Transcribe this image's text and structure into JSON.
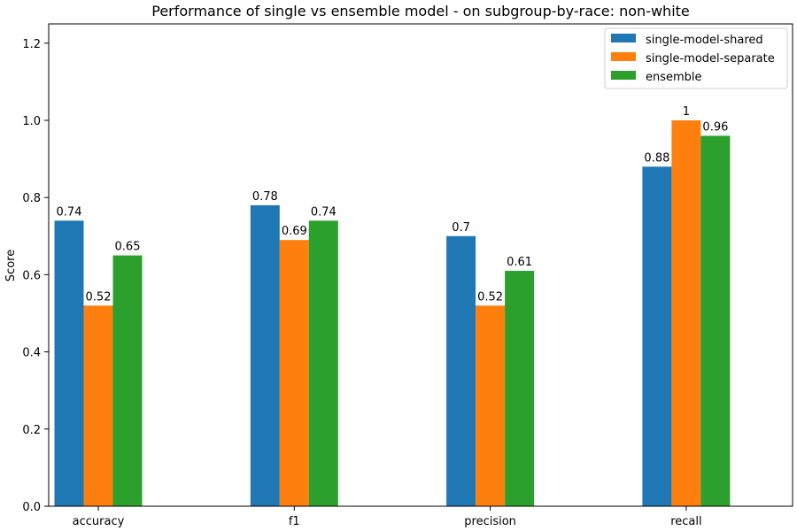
{
  "chart_data": {
    "type": "bar",
    "title": "Performance of single vs ensemble model - on subgroup-by-race: non-white",
    "xlabel": "",
    "ylabel": "Score",
    "categories": [
      "accuracy",
      "f1",
      "precision",
      "recall"
    ],
    "series": [
      {
        "name": "single-model-shared",
        "color": "#1f77b4",
        "values": [
          0.74,
          0.78,
          0.7,
          0.88
        ],
        "labels": [
          "0.74",
          "0.78",
          "0.7",
          "0.88"
        ]
      },
      {
        "name": "single-model-separate",
        "color": "#ff7f0e",
        "values": [
          0.52,
          0.69,
          0.52,
          1.0
        ],
        "labels": [
          "0.52",
          "0.69",
          "0.52",
          "1"
        ]
      },
      {
        "name": "ensemble",
        "color": "#2ca02c",
        "values": [
          0.65,
          0.74,
          0.61,
          0.96
        ],
        "labels": [
          "0.65",
          "0.74",
          "0.61",
          "0.96"
        ]
      }
    ],
    "ylim": [
      0,
      1.25
    ],
    "yticks": [
      "0.0",
      "0.2",
      "0.4",
      "0.6",
      "0.8",
      "1.0",
      "1.2"
    ],
    "grid": false,
    "legend_position": "top-right"
  }
}
